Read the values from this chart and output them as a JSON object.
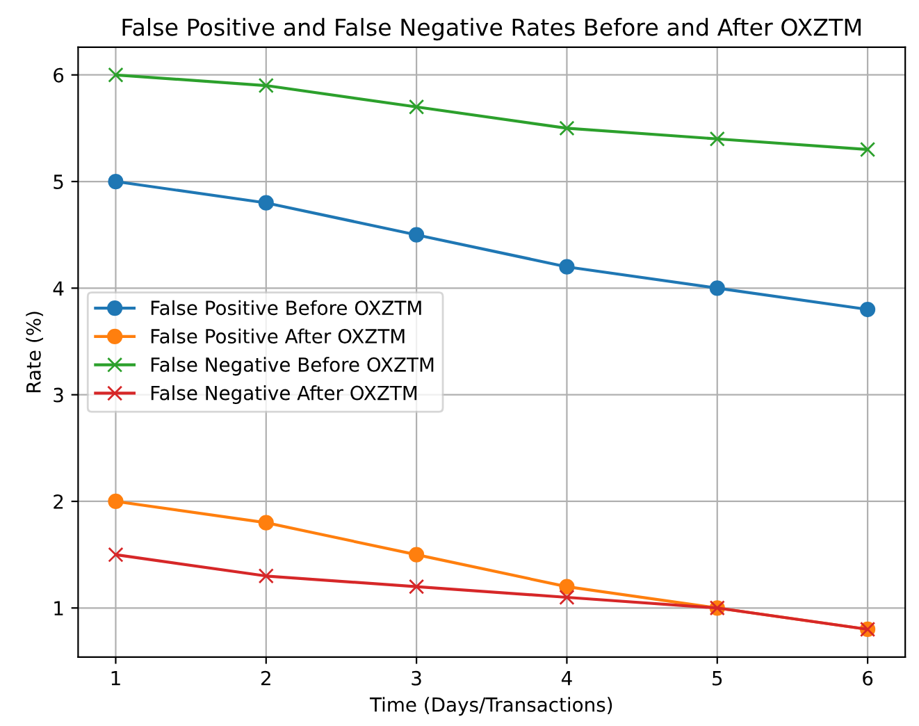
{
  "chart_data": {
    "type": "line",
    "title": "False Positive and False Negative Rates Before and After OXZTM",
    "xlabel": "Time (Days/Transactions)",
    "ylabel": "Rate (%)",
    "x": [
      1,
      2,
      3,
      4,
      5,
      6
    ],
    "series": [
      {
        "name": "False Positive Before OXZTM",
        "color": "#1f77b4",
        "marker": "circle",
        "values": [
          5,
          4.8,
          4.5,
          4.2,
          4.0,
          3.8
        ]
      },
      {
        "name": "False Positive After OXZTM",
        "color": "#ff7f0e",
        "marker": "circle",
        "values": [
          2,
          1.8,
          1.5,
          1.2,
          1.0,
          0.8
        ]
      },
      {
        "name": "False Negative Before OXZTM",
        "color": "#2ca02c",
        "marker": "cross",
        "values": [
          6,
          5.9,
          5.7,
          5.5,
          5.4,
          5.3
        ]
      },
      {
        "name": "False Negative After OXZTM",
        "color": "#d62728",
        "marker": "cross",
        "values": [
          1.5,
          1.3,
          1.2,
          1.1,
          1.0,
          0.8
        ]
      }
    ],
    "xlim": [
      0.75,
      6.25
    ],
    "xticks": [
      1,
      2,
      3,
      4,
      5,
      6
    ],
    "ylim": [
      0.54,
      6.26
    ],
    "yticks": [
      1,
      2,
      3,
      4,
      5,
      6
    ],
    "grid": true,
    "legend": "left",
    "line_style": "solid"
  }
}
